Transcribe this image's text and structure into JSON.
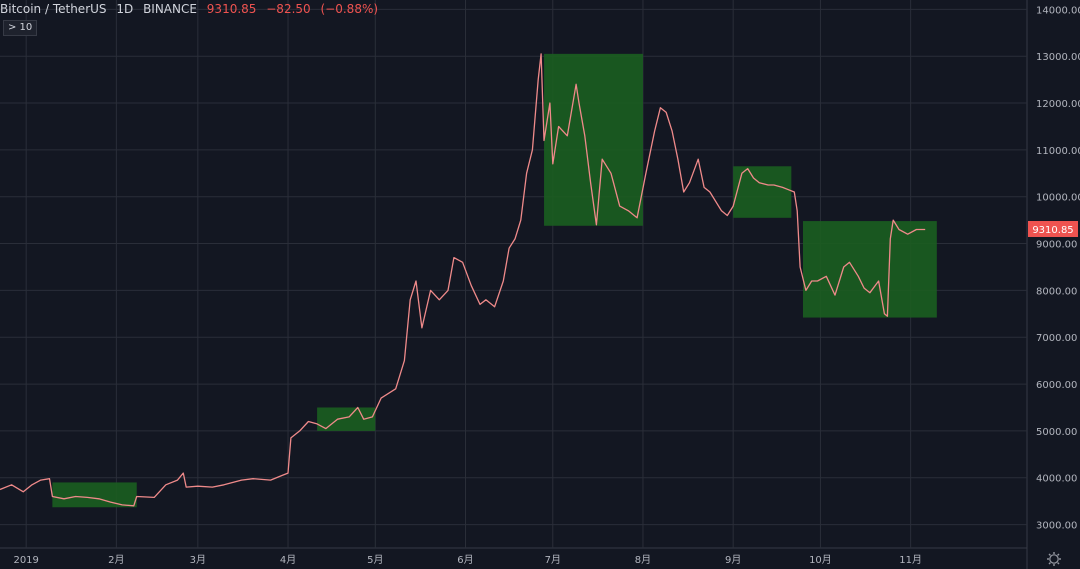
{
  "header": {
    "title": "Bitcoin / TetherUS",
    "interval": "1D",
    "exchange": "BINANCE",
    "last": "9310.85",
    "change": "−82.50",
    "change_pct": "(−0.88%)"
  },
  "badge": {
    "label": "> 10"
  },
  "colors": {
    "background": "#131722",
    "grid": "#2a2e39",
    "line": "#ef8a8a",
    "box_fill": "#1b5e20",
    "price_tag": "#ef5350"
  },
  "icons": {
    "settings": "gear-icon"
  },
  "chart_data": {
    "type": "line",
    "title": "Bitcoin / TetherUS 1D BINANCE",
    "x_type": "date",
    "x_range": [
      "2018-12-23",
      "2019-12-11"
    ],
    "ylim": [
      2500,
      14200
    ],
    "y_ticks": [
      "3000.00",
      "4000.00",
      "5000.00",
      "6000.00",
      "7000.00",
      "8000.00",
      "9000.00",
      "10000.00",
      "11000.00",
      "12000.00",
      "13000.00",
      "14000.00"
    ],
    "x_ticks": [
      {
        "date": "2019-01-01",
        "label": "2019"
      },
      {
        "date": "2019-02-01",
        "label": "2月"
      },
      {
        "date": "2019-03-01",
        "label": "3月"
      },
      {
        "date": "2019-04-01",
        "label": "4月"
      },
      {
        "date": "2019-05-01",
        "label": "5月"
      },
      {
        "date": "2019-06-01",
        "label": "6月"
      },
      {
        "date": "2019-07-01",
        "label": "7月"
      },
      {
        "date": "2019-08-01",
        "label": "8月"
      },
      {
        "date": "2019-09-01",
        "label": "9月"
      },
      {
        "date": "2019-10-01",
        "label": "10月"
      },
      {
        "date": "2019-11-01",
        "label": "11月"
      }
    ],
    "last_price_label": "9310.85",
    "grid": true,
    "series": [
      {
        "points": [
          [
            "2018-12-23",
            3750
          ],
          [
            "2018-12-27",
            3850
          ],
          [
            "2018-12-31",
            3700
          ],
          [
            "2019-01-03",
            3850
          ],
          [
            "2019-01-06",
            3950
          ],
          [
            "2019-01-09",
            3980
          ],
          [
            "2019-01-10",
            3600
          ],
          [
            "2019-01-14",
            3550
          ],
          [
            "2019-01-18",
            3600
          ],
          [
            "2019-01-22",
            3580
          ],
          [
            "2019-01-26",
            3550
          ],
          [
            "2019-01-30",
            3480
          ],
          [
            "2019-02-03",
            3420
          ],
          [
            "2019-02-07",
            3400
          ],
          [
            "2019-02-08",
            3600
          ],
          [
            "2019-02-14",
            3580
          ],
          [
            "2019-02-18",
            3850
          ],
          [
            "2019-02-22",
            3950
          ],
          [
            "2019-02-24",
            4100
          ],
          [
            "2019-02-25",
            3800
          ],
          [
            "2019-03-01",
            3820
          ],
          [
            "2019-03-06",
            3800
          ],
          [
            "2019-03-10",
            3850
          ],
          [
            "2019-03-16",
            3950
          ],
          [
            "2019-03-20",
            3980
          ],
          [
            "2019-03-26",
            3950
          ],
          [
            "2019-03-30",
            4050
          ],
          [
            "2019-04-01",
            4100
          ],
          [
            "2019-04-02",
            4850
          ],
          [
            "2019-04-05",
            5000
          ],
          [
            "2019-04-08",
            5200
          ],
          [
            "2019-04-11",
            5150
          ],
          [
            "2019-04-14",
            5050
          ],
          [
            "2019-04-18",
            5250
          ],
          [
            "2019-04-22",
            5300
          ],
          [
            "2019-04-25",
            5500
          ],
          [
            "2019-04-27",
            5250
          ],
          [
            "2019-04-30",
            5300
          ],
          [
            "2019-05-03",
            5700
          ],
          [
            "2019-05-08",
            5900
          ],
          [
            "2019-05-11",
            6500
          ],
          [
            "2019-05-13",
            7800
          ],
          [
            "2019-05-15",
            8200
          ],
          [
            "2019-05-17",
            7200
          ],
          [
            "2019-05-20",
            8000
          ],
          [
            "2019-05-23",
            7800
          ],
          [
            "2019-05-26",
            8000
          ],
          [
            "2019-05-28",
            8700
          ],
          [
            "2019-05-31",
            8600
          ],
          [
            "2019-06-03",
            8100
          ],
          [
            "2019-06-06",
            7700
          ],
          [
            "2019-06-08",
            7800
          ],
          [
            "2019-06-11",
            7650
          ],
          [
            "2019-06-14",
            8200
          ],
          [
            "2019-06-16",
            8900
          ],
          [
            "2019-06-18",
            9100
          ],
          [
            "2019-06-20",
            9500
          ],
          [
            "2019-06-22",
            10500
          ],
          [
            "2019-06-24",
            11000
          ],
          [
            "2019-06-26",
            12500
          ],
          [
            "2019-06-27",
            13050
          ],
          [
            "2019-06-28",
            11200
          ],
          [
            "2019-06-30",
            12000
          ],
          [
            "2019-07-01",
            10700
          ],
          [
            "2019-07-03",
            11500
          ],
          [
            "2019-07-06",
            11300
          ],
          [
            "2019-07-09",
            12400
          ],
          [
            "2019-07-10",
            12000
          ],
          [
            "2019-07-12",
            11300
          ],
          [
            "2019-07-14",
            10300
          ],
          [
            "2019-07-16",
            9400
          ],
          [
            "2019-07-18",
            10800
          ],
          [
            "2019-07-21",
            10500
          ],
          [
            "2019-07-24",
            9800
          ],
          [
            "2019-07-27",
            9700
          ],
          [
            "2019-07-30",
            9550
          ],
          [
            "2019-08-02",
            10500
          ],
          [
            "2019-08-05",
            11400
          ],
          [
            "2019-08-07",
            11900
          ],
          [
            "2019-08-09",
            11800
          ],
          [
            "2019-08-11",
            11400
          ],
          [
            "2019-08-13",
            10800
          ],
          [
            "2019-08-15",
            10100
          ],
          [
            "2019-08-17",
            10300
          ],
          [
            "2019-08-20",
            10800
          ],
          [
            "2019-08-22",
            10200
          ],
          [
            "2019-08-24",
            10100
          ],
          [
            "2019-08-28",
            9700
          ],
          [
            "2019-08-30",
            9600
          ],
          [
            "2019-09-01",
            9800
          ],
          [
            "2019-09-04",
            10500
          ],
          [
            "2019-09-06",
            10600
          ],
          [
            "2019-09-08",
            10400
          ],
          [
            "2019-09-10",
            10300
          ],
          [
            "2019-09-13",
            10250
          ],
          [
            "2019-09-15",
            10250
          ],
          [
            "2019-09-18",
            10200
          ],
          [
            "2019-09-20",
            10150
          ],
          [
            "2019-09-22",
            10100
          ],
          [
            "2019-09-23",
            9700
          ],
          [
            "2019-09-24",
            8500
          ],
          [
            "2019-09-26",
            8000
          ],
          [
            "2019-09-28",
            8200
          ],
          [
            "2019-09-30",
            8200
          ],
          [
            "2019-10-03",
            8300
          ],
          [
            "2019-10-06",
            7900
          ],
          [
            "2019-10-09",
            8500
          ],
          [
            "2019-10-11",
            8600
          ],
          [
            "2019-10-14",
            8300
          ],
          [
            "2019-10-16",
            8050
          ],
          [
            "2019-10-18",
            7950
          ],
          [
            "2019-10-21",
            8200
          ],
          [
            "2019-10-23",
            7500
          ],
          [
            "2019-10-24",
            7450
          ],
          [
            "2019-10-25",
            9100
          ],
          [
            "2019-10-26",
            9500
          ],
          [
            "2019-10-28",
            9300
          ],
          [
            "2019-10-31",
            9200
          ],
          [
            "2019-11-03",
            9300
          ],
          [
            "2019-11-06",
            9300
          ]
        ]
      }
    ],
    "highlight_boxes": [
      {
        "x0": "2019-01-10",
        "x1": "2019-02-08",
        "y0": 3370,
        "y1": 3900
      },
      {
        "x0": "2019-04-11",
        "x1": "2019-05-01",
        "y0": 5000,
        "y1": 5500
      },
      {
        "x0": "2019-06-28",
        "x1": "2019-08-01",
        "y0": 9380,
        "y1": 13050
      },
      {
        "x0": "2019-09-01",
        "x1": "2019-09-21",
        "y0": 9550,
        "y1": 10650
      },
      {
        "x0": "2019-09-25",
        "x1": "2019-11-10",
        "y0": 7420,
        "y1": 9480
      }
    ]
  }
}
